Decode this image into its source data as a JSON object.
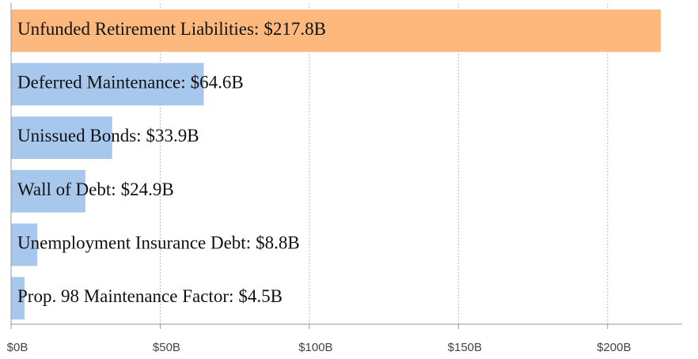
{
  "chart_data": {
    "type": "hbar",
    "categories": [
      "Unfunded Retirement Liabilities:",
      "Deferred Maintenance:",
      "Unissued Bonds:",
      "Wall of Debt:",
      "Unemployment Insurance Debt:",
      "Prop. 98 Maintenance Factor:"
    ],
    "values": [
      217.8,
      64.6,
      33.9,
      24.9,
      8.8,
      4.5
    ],
    "value_labels": [
      "$217.8B",
      "$64.6B",
      "$33.9B",
      "$24.9B",
      "$8.8B",
      "$4.5B"
    ],
    "colors": [
      "#fdb97d",
      "#a7c8ec",
      "#a7c8ec",
      "#a7c8ec",
      "#a7c8ec",
      "#a7c8ec"
    ],
    "xlim": [
      0,
      225
    ],
    "xticks": [
      {
        "value": 0,
        "label": "$0B"
      },
      {
        "value": 50,
        "label": "$50B"
      },
      {
        "value": 100,
        "label": "$100B"
      },
      {
        "value": 150,
        "label": "$150B"
      },
      {
        "value": 200,
        "label": "$200B"
      }
    ],
    "grid": true
  }
}
